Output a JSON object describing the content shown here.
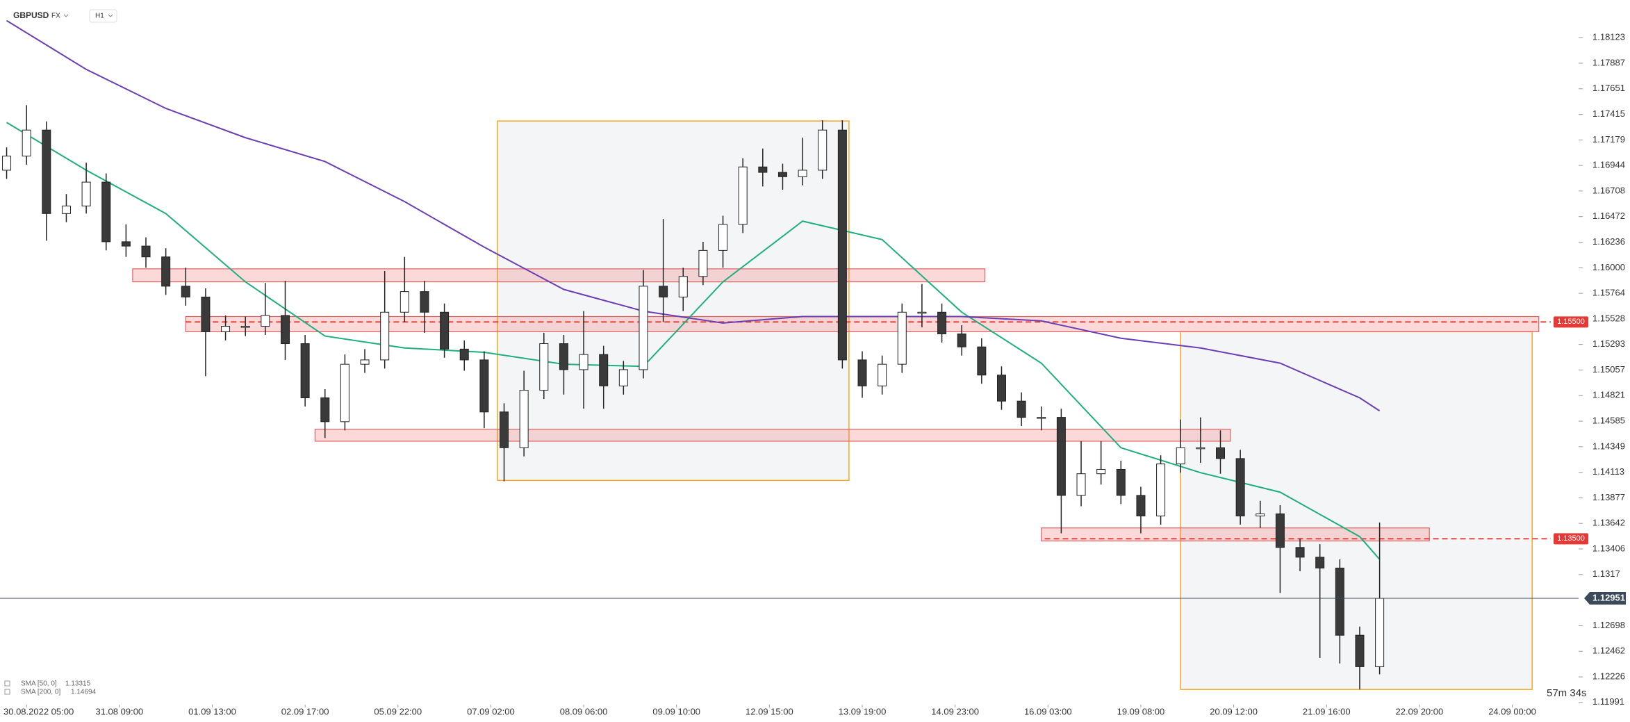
{
  "chart_data": {
    "type": "candlestick",
    "symbol": "GBPUSD",
    "market": "FX",
    "interval": "H1",
    "countdown": "57m 34s",
    "xlim": [
      -8,
      468
    ],
    "ylim": [
      1.1197,
      1.1847
    ],
    "xticks": [
      {
        "value": 0,
        "label": "30.08.2022 05:00"
      },
      {
        "value": 28,
        "label": "31.08 09:00"
      },
      {
        "value": 56,
        "label": "01.09 13:00"
      },
      {
        "value": 84,
        "label": "02.09 17:00"
      },
      {
        "value": 112,
        "label": "05.09 22:00"
      },
      {
        "value": 140,
        "label": "07.09 02:00"
      },
      {
        "value": 168,
        "label": "08.09 06:00"
      },
      {
        "value": 196,
        "label": "09.09 10:00"
      },
      {
        "value": 224,
        "label": "12.09 15:00"
      },
      {
        "value": 252,
        "label": "13.09 19:00"
      },
      {
        "value": 280,
        "label": "14.09 23:00"
      },
      {
        "value": 308,
        "label": "16.09 03:00"
      },
      {
        "value": 336,
        "label": "19.09 08:00"
      },
      {
        "value": 364,
        "label": "20.09 12:00"
      },
      {
        "value": 392,
        "label": "21.09 16:00"
      },
      {
        "value": 420,
        "label": "22.09 20:00"
      },
      {
        "value": 448,
        "label": "24.09 00:00"
      }
    ],
    "yticks": [
      1.18123,
      1.17887,
      1.17651,
      1.17415,
      1.17179,
      1.16944,
      1.16708,
      1.16472,
      1.16236,
      {
        "value": 1.16,
        "label": "1.16000"
      },
      1.15764,
      1.15528,
      1.15293,
      1.15057,
      1.14821,
      1.14585,
      1.14349,
      1.14113,
      1.13877,
      1.13642,
      1.13406,
      1.1317,
      1.12698,
      1.12462,
      1.12226,
      1.11991
    ],
    "x": [
      -6,
      0,
      6,
      12,
      18,
      24,
      30,
      36,
      42,
      48,
      54,
      60,
      66,
      72,
      78,
      84,
      90,
      96,
      102,
      108,
      114,
      120,
      126,
      132,
      138,
      144,
      150,
      156,
      162,
      168,
      174,
      180,
      186,
      192,
      198,
      204,
      210,
      216,
      222,
      228,
      234,
      240,
      246,
      252,
      258,
      264,
      270,
      276,
      282,
      288,
      294,
      300,
      306,
      312,
      318,
      324,
      330,
      336,
      342,
      348,
      354,
      360,
      366,
      372,
      378,
      384,
      390,
      396,
      402,
      408
    ],
    "open": [
      1.169,
      1.1703,
      1.1727,
      1.165,
      1.1657,
      1.1679,
      1.1624,
      1.162,
      1.161,
      1.1583,
      1.1573,
      1.1541,
      1.1546,
      1.1546,
      1.1556,
      1.153,
      1.148,
      1.1458,
      1.1511,
      1.1515,
      1.1559,
      1.1578,
      1.1559,
      1.1525,
      1.1515,
      1.1467,
      1.1434,
      1.1487,
      1.153,
      1.1506,
      1.152,
      1.1491,
      1.1506,
      1.1583,
      1.1573,
      1.1592,
      1.1616,
      1.164,
      1.1693,
      1.1688,
      1.1684,
      1.169,
      1.1727,
      1.1515,
      1.1491,
      1.1511,
      1.1559,
      1.1559,
      1.1539,
      1.1527,
      1.1501,
      1.1477,
      1.1462,
      1.1462,
      1.139,
      1.141,
      1.1414,
      1.139,
      1.1371,
      1.1419,
      1.1434,
      1.1434,
      1.1424,
      1.1371,
      1.1373,
      1.1342,
      1.1333,
      1.1323,
      1.1261,
      1.1232
    ],
    "high": [
      1.1711,
      1.175,
      1.1735,
      1.1668,
      1.1697,
      1.1687,
      1.164,
      1.1628,
      1.1618,
      1.16,
      1.1581,
      1.1556,
      1.1555,
      1.1586,
      1.1588,
      1.1538,
      1.1488,
      1.152,
      1.1525,
      1.1597,
      1.161,
      1.1588,
      1.1567,
      1.1533,
      1.1523,
      1.1475,
      1.1505,
      1.154,
      1.1538,
      1.156,
      1.1528,
      1.1514,
      1.1598,
      1.1645,
      1.16,
      1.1624,
      1.1648,
      1.1701,
      1.171,
      1.1696,
      1.172,
      1.1736,
      1.1736,
      1.1523,
      1.1519,
      1.1567,
      1.1585,
      1.1567,
      1.1547,
      1.1535,
      1.1509,
      1.1485,
      1.1472,
      1.147,
      1.144,
      1.144,
      1.1422,
      1.1398,
      1.1427,
      1.146,
      1.1462,
      1.145,
      1.1432,
      1.1385,
      1.1381,
      1.135,
      1.1345,
      1.1331,
      1.1269,
      1.1365
    ],
    "low": [
      1.1682,
      1.1695,
      1.1625,
      1.1642,
      1.165,
      1.1616,
      1.161,
      1.16,
      1.1575,
      1.1565,
      1.15,
      1.1533,
      1.1537,
      1.1538,
      1.1515,
      1.1472,
      1.1443,
      1.145,
      1.1503,
      1.1507,
      1.155,
      1.154,
      1.1517,
      1.1505,
      1.1452,
      1.1403,
      1.1426,
      1.1479,
      1.1483,
      1.147,
      1.147,
      1.1483,
      1.1498,
      1.155,
      1.156,
      1.1584,
      1.16,
      1.1632,
      1.1675,
      1.1672,
      1.1676,
      1.1682,
      1.1507,
      1.148,
      1.1483,
      1.1503,
      1.1545,
      1.1531,
      1.1519,
      1.1493,
      1.1469,
      1.1454,
      1.145,
      1.1355,
      1.138,
      1.14,
      1.1382,
      1.1355,
      1.1363,
      1.1411,
      1.142,
      1.141,
      1.1363,
      1.136,
      1.13,
      1.132,
      1.124,
      1.1235,
      1.1211,
      1.1225
    ],
    "close": [
      1.1703,
      1.1727,
      1.165,
      1.1657,
      1.1679,
      1.1624,
      1.162,
      1.161,
      1.1583,
      1.1573,
      1.1541,
      1.1546,
      1.1546,
      1.1556,
      1.153,
      1.148,
      1.1458,
      1.1511,
      1.1515,
      1.1559,
      1.1578,
      1.1559,
      1.1525,
      1.1515,
      1.1467,
      1.1434,
      1.1487,
      1.153,
      1.1506,
      1.152,
      1.1491,
      1.1506,
      1.1583,
      1.1573,
      1.1592,
      1.1616,
      1.164,
      1.1693,
      1.1688,
      1.1684,
      1.169,
      1.1727,
      1.1515,
      1.1491,
      1.1511,
      1.1559,
      1.1559,
      1.1539,
      1.1527,
      1.1501,
      1.1477,
      1.1462,
      1.1462,
      1.139,
      1.141,
      1.1414,
      1.139,
      1.1371,
      1.1419,
      1.1434,
      1.1434,
      1.1424,
      1.1371,
      1.1373,
      1.1342,
      1.1333,
      1.1323,
      1.1261,
      1.1232,
      1.1295
    ],
    "up_color": "#ffffff",
    "down_color": "#3a3a3a",
    "series": [
      {
        "name": "SMA [50, 0]",
        "color": "#1fae7f",
        "legend_value": 1.13315,
        "x": [
          -6,
          18,
          42,
          66,
          90,
          114,
          138,
          162,
          186,
          210,
          234,
          258,
          282,
          306,
          330,
          354,
          378,
          402,
          408
        ],
        "values": [
          1.1734,
          1.169,
          1.165,
          1.1587,
          1.1537,
          1.1526,
          1.1522,
          1.1511,
          1.1509,
          1.1587,
          1.1643,
          1.1626,
          1.1559,
          1.1512,
          1.1434,
          1.1411,
          1.1393,
          1.1352,
          1.1331
        ]
      },
      {
        "name": "SMA [200, 0]",
        "color": "#6a3fb5",
        "legend_value": 1.14694,
        "x": [
          -6,
          18,
          42,
          66,
          90,
          114,
          138,
          162,
          186,
          210,
          234,
          258,
          282,
          306,
          330,
          354,
          378,
          402,
          408
        ],
        "values": [
          1.1828,
          1.1783,
          1.1747,
          1.172,
          1.1698,
          1.1661,
          1.1619,
          1.158,
          1.156,
          1.1549,
          1.1555,
          1.1555,
          1.1555,
          1.1551,
          1.1535,
          1.1526,
          1.1512,
          1.148,
          1.1468
        ]
      }
    ],
    "zones": [
      {
        "x": [
          32,
          289
        ],
        "y": [
          1.1599,
          1.1587
        ]
      },
      {
        "x": [
          48,
          456
        ],
        "y": [
          1.1555,
          1.1541
        ]
      },
      {
        "x": [
          87,
          363
        ],
        "y": [
          1.1451,
          1.144
        ]
      },
      {
        "x": [
          306,
          423
        ],
        "y": [
          1.136,
          1.1348
        ]
      }
    ],
    "boxes": [
      {
        "x": [
          142,
          248
        ],
        "y": [
          1.17354,
          1.14038
        ]
      },
      {
        "x": [
          348,
          454
        ],
        "y": [
          1.1541,
          1.1211
        ]
      }
    ],
    "levels": [
      {
        "start": 48,
        "price": {
          "value": 1.155,
          "label": "1.15500"
        }
      },
      {
        "start": 307,
        "price": {
          "value": 1.135,
          "label": "1.13500"
        }
      }
    ],
    "last_price": 1.12951
  }
}
